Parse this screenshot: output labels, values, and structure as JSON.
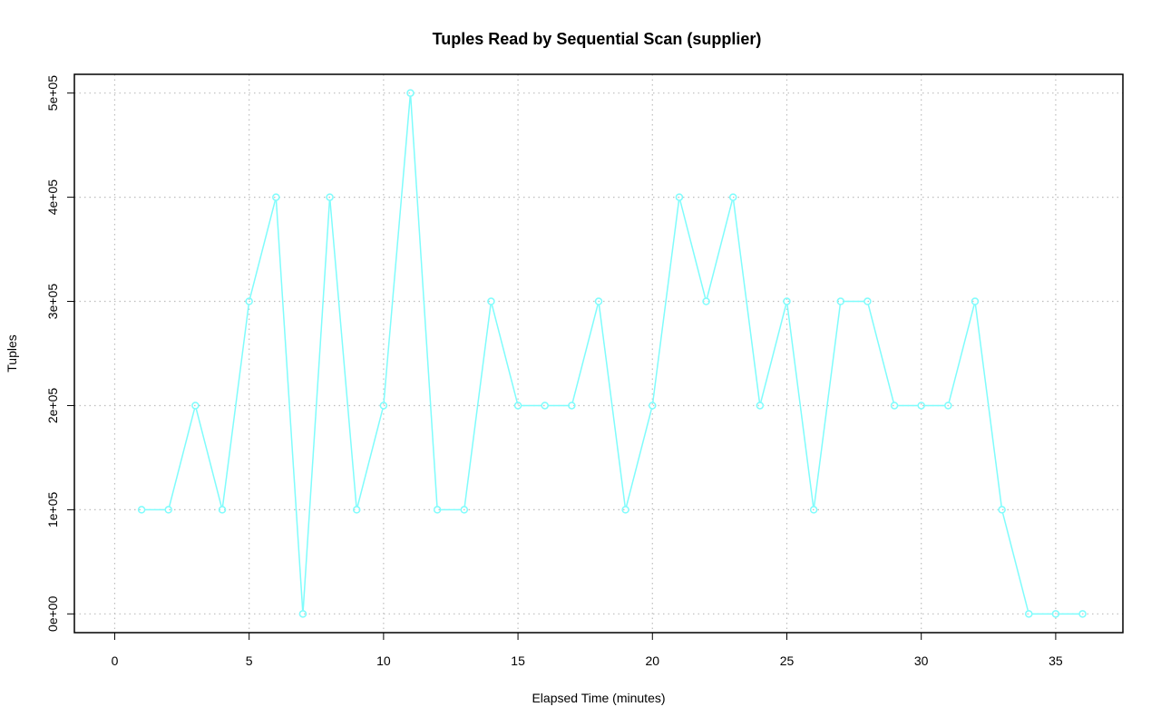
{
  "chart_data": {
    "type": "line",
    "title": "Tuples Read by Sequential Scan (supplier)",
    "xlabel": "Elapsed Time (minutes)",
    "ylabel": "Tuples",
    "xlim": [
      -1.5,
      37.5
    ],
    "ylim": [
      -18000,
      518000
    ],
    "xticks": [
      0,
      5,
      10,
      15,
      20,
      25,
      30,
      35
    ],
    "xtick_labels": [
      "0",
      "5",
      "10",
      "15",
      "20",
      "25",
      "30",
      "35"
    ],
    "yticks": [
      0,
      100000,
      200000,
      300000,
      400000,
      500000
    ],
    "ytick_labels": [
      "0e+00",
      "1e+05",
      "2e+05",
      "3e+05",
      "4e+05",
      "5e+05"
    ],
    "grid": true,
    "series": [
      {
        "color": "#7ffcfc",
        "marker": "circle",
        "x": [
          1,
          2,
          3,
          4,
          5,
          6,
          7,
          8,
          9,
          10,
          11,
          12,
          13,
          14,
          15,
          16,
          17,
          18,
          19,
          20,
          21,
          22,
          23,
          24,
          25,
          26,
          27,
          28,
          29,
          30,
          31,
          32,
          33,
          34,
          35,
          36
        ],
        "y": [
          100000,
          100000,
          200000,
          100000,
          300000,
          400000,
          0,
          400000,
          100000,
          200000,
          500000,
          100000,
          100000,
          300000,
          200000,
          200000,
          200000,
          300000,
          100000,
          200000,
          400000,
          300000,
          400000,
          200000,
          300000,
          100000,
          300000,
          300000,
          200000,
          200000,
          200000,
          300000,
          100000,
          0,
          0,
          0
        ]
      }
    ]
  }
}
